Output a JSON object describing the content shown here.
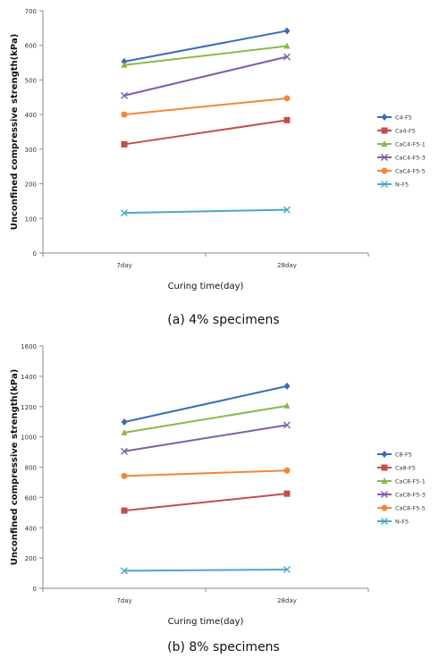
{
  "panels": [
    {
      "caption": "(a) 4% specimens",
      "chart_data": {
        "type": "line",
        "categories": [
          "7day",
          "28day"
        ],
        "xlabel": "Curing time(day)",
        "ylabel": "Unconfined compressive strength(kPa)",
        "ylim": [
          0,
          700
        ],
        "yticks": [
          "0",
          "100",
          "200",
          "300",
          "400",
          "500",
          "600",
          "700"
        ],
        "grid": false,
        "legend_position": "right",
        "series": [
          {
            "name": "C4-F5",
            "values": [
              553,
              642
            ],
            "color": "#3a6db5",
            "marker": "diamond"
          },
          {
            "name": "Ca4-F5",
            "values": [
              314,
              384
            ],
            "color": "#c0504d",
            "marker": "square"
          },
          {
            "name": "CaC4-F5-1",
            "values": [
              543,
              598
            ],
            "color": "#8cb84a",
            "marker": "triangle"
          },
          {
            "name": "CaC4-F5-3",
            "values": [
              455,
              567
            ],
            "color": "#7f5fa8",
            "marker": "x"
          },
          {
            "name": "CaC4-F5-5",
            "values": [
              400,
              447
            ],
            "color": "#f0883a",
            "marker": "circle"
          },
          {
            "name": "N-F5",
            "values": [
              116,
              125
            ],
            "color": "#4ba9c8",
            "marker": "x"
          }
        ]
      }
    },
    {
      "caption": "(b) 8% specimens",
      "chart_data": {
        "type": "line",
        "categories": [
          "7day",
          "28day"
        ],
        "xlabel": "Curing time(day)",
        "ylabel": "Unconfined compressive strength(kPa)",
        "ylim": [
          0,
          1600
        ],
        "yticks": [
          "0",
          "200",
          "400",
          "600",
          "800",
          "1000",
          "1200",
          "1400",
          "1600"
        ],
        "grid": false,
        "legend_position": "right",
        "series": [
          {
            "name": "C8-F5",
            "values": [
              1098,
              1335
            ],
            "color": "#3a6db5",
            "marker": "diamond"
          },
          {
            "name": "Ca8-F5",
            "values": [
              513,
              625
            ],
            "color": "#c0504d",
            "marker": "square"
          },
          {
            "name": "CaC8-F5-1",
            "values": [
              1028,
              1205
            ],
            "color": "#8cb84a",
            "marker": "triangle"
          },
          {
            "name": "CaC8-F5-3",
            "values": [
              905,
              1078
            ],
            "color": "#7f5fa8",
            "marker": "x"
          },
          {
            "name": "CaC8-F5-5",
            "values": [
              742,
              778
            ],
            "color": "#f0883a",
            "marker": "circle"
          },
          {
            "name": "N-F5",
            "values": [
              116,
              124
            ],
            "color": "#4ba9c8",
            "marker": "x"
          }
        ]
      }
    }
  ]
}
